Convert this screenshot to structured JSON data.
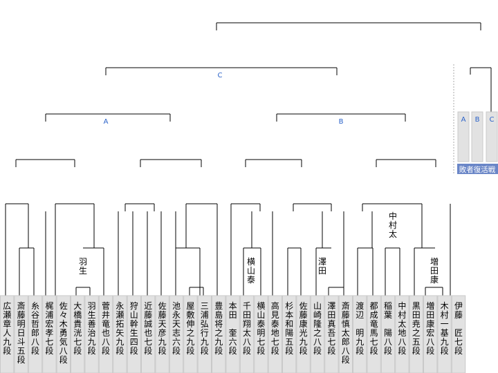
{
  "block_labels": {
    "a": "A",
    "b": "B",
    "c": "C"
  },
  "repechage": {
    "caption": "敗者復活戦",
    "slots": [
      "A",
      "B",
      "C"
    ]
  },
  "winners": {
    "habu": "羽生",
    "yokoyama": "横山泰",
    "sawada": "澤田",
    "nakamura": "中村太",
    "masuda": "増田康"
  },
  "players": [
    "広瀬章人九段",
    "斎藤明日斗五段",
    "糸谷哲郎八段",
    "梶浦宏孝七段",
    "佐々木勇気八段",
    "大橋貴洸七段",
    "羽生善治九段",
    "菅井竜也八段",
    "永瀬拓矢九段",
    "狩山幹生四段",
    "近藤誠也七段",
    "佐藤天彦九段",
    "池永天志六段",
    "屋敷伸之九段",
    "三浦弘行九段",
    "豊島将之九段",
    "本田　奎六段",
    "千田翔太八段",
    "横山泰明七段",
    "高見泰地七段",
    "杉本和陽五段",
    "佐藤康光九段",
    "山崎隆之八段",
    "澤田真吾七段",
    "斎藤慎太郎八段",
    "渡辺　明九段",
    "都成竜馬七段",
    "稲葉　陽八段",
    "中村太地八段",
    "黒田尭之五段",
    "増田康宏八段",
    "木村一基九段",
    "伊藤　匠七段"
  ]
}
